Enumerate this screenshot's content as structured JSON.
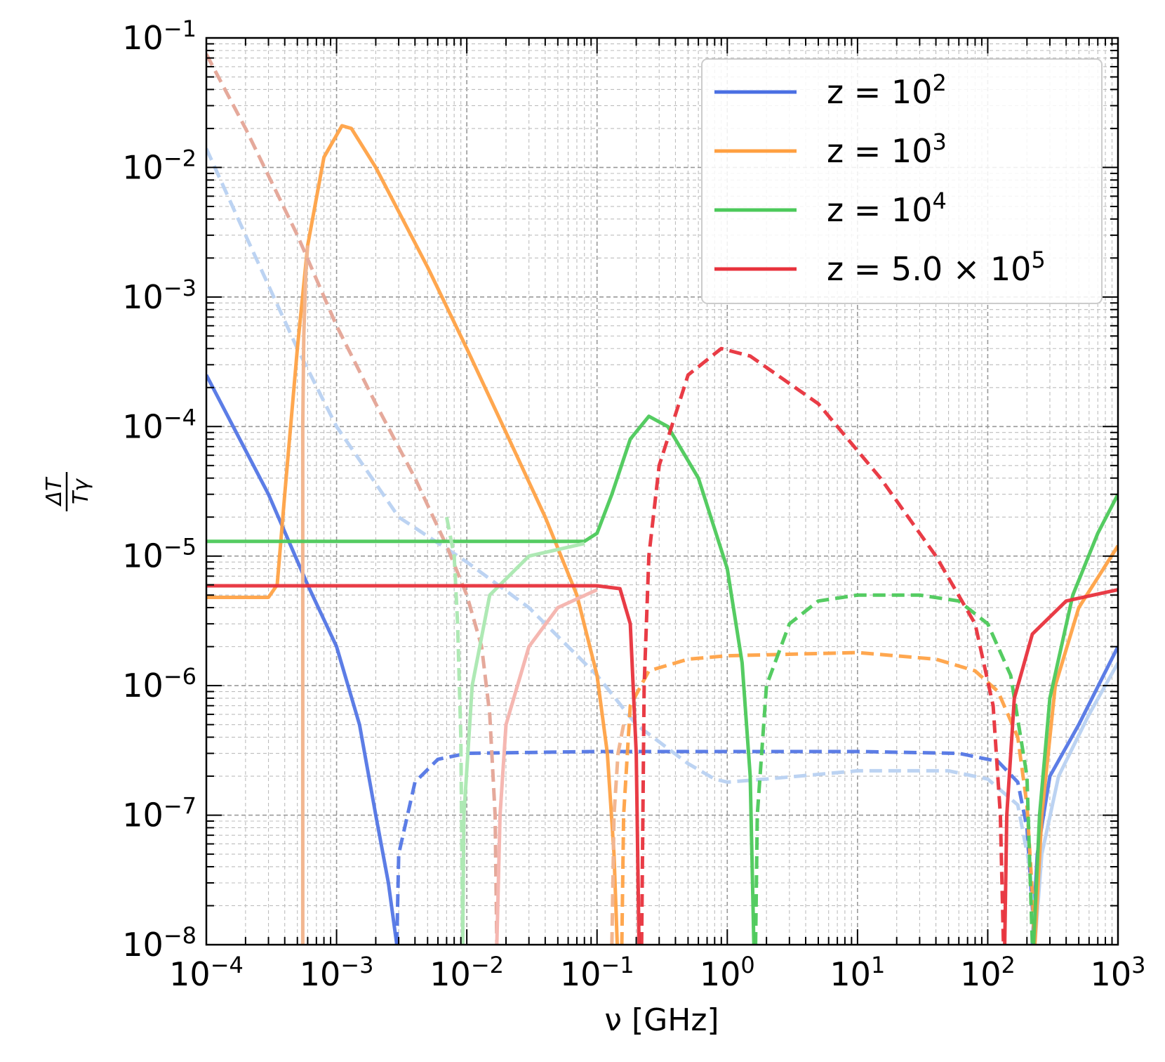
{
  "chart_data": {
    "type": "line",
    "xlabel": "ν [GHz]",
    "ylabel": {
      "numerator": "ΔT",
      "denominator": "Tγ"
    },
    "xscale": "log",
    "yscale": "log",
    "xlim": [
      0.0001,
      1000
    ],
    "ylim": [
      1e-08,
      0.1
    ],
    "grid": true,
    "legend_position": "top-right",
    "x_ticks": [
      {
        "value": 0.0001,
        "base": "10",
        "exp": "−4"
      },
      {
        "value": 0.001,
        "base": "10",
        "exp": "−3"
      },
      {
        "value": 0.01,
        "base": "10",
        "exp": "−2"
      },
      {
        "value": 0.1,
        "base": "10",
        "exp": "−1"
      },
      {
        "value": 1,
        "base": "10",
        "exp": "0"
      },
      {
        "value": 10,
        "base": "10",
        "exp": "1"
      },
      {
        "value": 100,
        "base": "10",
        "exp": "2"
      },
      {
        "value": 1000,
        "base": "10",
        "exp": "3"
      }
    ],
    "y_ticks": [
      {
        "value": 0.1,
        "base": "10",
        "exp": "−1"
      },
      {
        "value": 0.01,
        "base": "10",
        "exp": "−2"
      },
      {
        "value": 0.001,
        "base": "10",
        "exp": "−3"
      },
      {
        "value": 0.0001,
        "base": "10",
        "exp": "−4"
      },
      {
        "value": 1e-05,
        "base": "10",
        "exp": "−5"
      },
      {
        "value": 1e-06,
        "base": "10",
        "exp": "−6"
      },
      {
        "value": 1e-07,
        "base": "10",
        "exp": "−7"
      },
      {
        "value": 1e-08,
        "base": "10",
        "exp": "−8"
      }
    ],
    "legend": [
      {
        "label": "z = 10",
        "sup": "2",
        "color": "#4a6fe3"
      },
      {
        "label": "z = 10",
        "sup": "3",
        "color": "#ff9f40"
      },
      {
        "label": "z = 10",
        "sup": "4",
        "color": "#4cc95a"
      },
      {
        "label": "z = 5.0 × 10",
        "sup": "5",
        "color": "#e8323c"
      }
    ],
    "series": [
      {
        "color": "#4a6fe3",
        "style": "solid",
        "opacity": 0.9,
        "points": [
          [
            0.0001,
            0.00025
          ],
          [
            0.0003,
            3e-05
          ],
          [
            0.0006,
            6e-06
          ],
          [
            0.001,
            2e-06
          ],
          [
            0.0015,
            5e-07
          ],
          [
            0.002,
            1e-07
          ],
          [
            0.0025,
            3e-08
          ],
          [
            0.0029,
            1e-08
          ]
        ]
      },
      {
        "color": "#4a6fe3",
        "style": "solid",
        "opacity": 0.9,
        "points": [
          [
            220,
            1e-08
          ],
          [
            240,
            5e-08
          ],
          [
            300,
            2e-07
          ],
          [
            500,
            5e-07
          ],
          [
            1000,
            2e-06
          ]
        ]
      },
      {
        "color": "#4a6fe3",
        "style": "dashed",
        "opacity": 0.9,
        "points": [
          [
            0.0029,
            1e-08
          ],
          [
            0.003,
            5e-08
          ],
          [
            0.004,
            1.8e-07
          ],
          [
            0.006,
            2.7e-07
          ],
          [
            0.01,
            3e-07
          ],
          [
            0.1,
            3.1e-07
          ],
          [
            1,
            3.1e-07
          ],
          [
            10,
            3.1e-07
          ],
          [
            60,
            3e-07
          ],
          [
            120,
            2.6e-07
          ],
          [
            170,
            1.8e-07
          ],
          [
            200,
            8e-08
          ],
          [
            230,
            1e-08
          ]
        ]
      },
      {
        "color": "#bcd3f2",
        "style": "dashed",
        "opacity": 1,
        "points": [
          [
            0.0001,
            0.014
          ],
          [
            0.0002,
            0.003
          ],
          [
            0.0005,
            0.0004
          ],
          [
            0.001,
            0.0001
          ],
          [
            0.003,
            2e-05
          ],
          [
            0.01,
            9e-06
          ],
          [
            0.03,
            4e-06
          ],
          [
            0.1,
            1.2e-06
          ],
          [
            0.2,
            5e-07
          ],
          [
            0.5,
            2.5e-07
          ],
          [
            0.8,
            1.9e-07
          ],
          [
            1,
            1.8e-07
          ],
          [
            2,
            1.9e-07
          ],
          [
            10,
            2.2e-07
          ],
          [
            50,
            2.2e-07
          ],
          [
            100,
            1.9e-07
          ],
          [
            170,
            1.2e-07
          ],
          [
            210,
            4e-08
          ],
          [
            230,
            1e-08
          ]
        ]
      },
      {
        "color": "#bcd3f2",
        "style": "solid",
        "opacity": 1,
        "points": [
          [
            230,
            1e-08
          ],
          [
            260,
            5e-08
          ],
          [
            350,
            2e-07
          ],
          [
            600,
            6e-07
          ],
          [
            1000,
            1.5e-06
          ]
        ]
      },
      {
        "color": "#ff9f40",
        "style": "solid",
        "opacity": 0.92,
        "points": [
          [
            0.0001,
            4.8e-06
          ],
          [
            0.0003,
            4.8e-06
          ],
          [
            0.00035,
            6e-06
          ],
          [
            0.0004,
            3e-05
          ],
          [
            0.0005,
            0.0004
          ],
          [
            0.0006,
            0.0025
          ],
          [
            0.0008,
            0.012
          ],
          [
            0.0011,
            0.021
          ],
          [
            0.0013,
            0.02
          ],
          [
            0.002,
            0.01
          ],
          [
            0.005,
            0.0017
          ],
          [
            0.01,
            0.0004
          ],
          [
            0.02,
            9e-05
          ],
          [
            0.04,
            2e-05
          ],
          [
            0.07,
            5e-06
          ],
          [
            0.1,
            1.2e-06
          ],
          [
            0.12,
            3e-07
          ],
          [
            0.135,
            5e-08
          ],
          [
            0.143,
            1e-08
          ]
        ]
      },
      {
        "color": "#ff9f40",
        "style": "solid",
        "opacity": 0.92,
        "points": [
          [
            230,
            1e-08
          ],
          [
            260,
            1e-07
          ],
          [
            330,
            1e-06
          ],
          [
            500,
            4e-06
          ],
          [
            1000,
            1.2e-05
          ]
        ]
      },
      {
        "color": "#ff9f40",
        "style": "dashed",
        "opacity": 0.92,
        "points": [
          [
            0.155,
            1e-08
          ],
          [
            0.16,
            1e-07
          ],
          [
            0.18,
            7e-07
          ],
          [
            0.25,
            1.3e-06
          ],
          [
            0.5,
            1.6e-06
          ],
          [
            1,
            1.7e-06
          ],
          [
            10,
            1.8e-06
          ],
          [
            40,
            1.6e-06
          ],
          [
            80,
            1.3e-06
          ],
          [
            120,
            9e-07
          ],
          [
            170,
            4e-07
          ],
          [
            200,
            1.2e-07
          ],
          [
            220,
            2.5e-08
          ],
          [
            228,
            1e-08
          ]
        ]
      },
      {
        "color": "#f2b690",
        "style": "solid",
        "opacity": 1,
        "points": [
          [
            0.00055,
            1e-08
          ],
          [
            0.00055,
            0.0001
          ],
          [
            0.00056,
            0.0005
          ],
          [
            0.00058,
            0.0015
          ],
          [
            0.0006,
            0.0025
          ]
        ]
      },
      {
        "color": "#e5a99b",
        "style": "dashed",
        "opacity": 1,
        "points": [
          [
            0.0001,
            0.075
          ],
          [
            0.0002,
            0.02
          ],
          [
            0.0005,
            0.003
          ],
          [
            0.001,
            0.0006
          ],
          [
            0.002,
            0.00015
          ],
          [
            0.004,
            4e-05
          ],
          [
            0.007,
            1.2e-05
          ],
          [
            0.01,
            5e-06
          ],
          [
            0.013,
            2e-06
          ],
          [
            0.015,
            6e-07
          ],
          [
            0.0165,
            1e-07
          ],
          [
            0.017,
            1e-08
          ]
        ]
      },
      {
        "color": "#f5b7b1",
        "style": "solid",
        "opacity": 1,
        "points": [
          [
            0.017,
            1e-08
          ],
          [
            0.018,
            1e-07
          ],
          [
            0.02,
            5e-07
          ],
          [
            0.03,
            2e-06
          ],
          [
            0.05,
            4e-06
          ],
          [
            0.1,
            5.5e-06
          ]
        ]
      },
      {
        "color": "#f2b690",
        "style": "dashed",
        "opacity": 1,
        "points": [
          [
            0.13,
            1e-08
          ],
          [
            0.135,
            1e-07
          ],
          [
            0.145,
            3e-07
          ],
          [
            0.16,
            5e-07
          ]
        ]
      },
      {
        "color": "#4cc95a",
        "style": "solid",
        "opacity": 0.95,
        "points": [
          [
            0.0001,
            1.3e-05
          ],
          [
            0.08,
            1.3e-05
          ],
          [
            0.1,
            1.5e-05
          ],
          [
            0.13,
            3e-05
          ],
          [
            0.18,
            8e-05
          ],
          [
            0.25,
            0.00012
          ],
          [
            0.35,
            0.0001
          ],
          [
            0.6,
            4e-05
          ],
          [
            1,
            8e-06
          ],
          [
            1.3,
            1.5e-06
          ],
          [
            1.5,
            2e-07
          ],
          [
            1.6,
            1e-08
          ]
        ]
      },
      {
        "color": "#4cc95a",
        "style": "solid",
        "opacity": 0.95,
        "points": [
          [
            225,
            1e-08
          ],
          [
            250,
            1e-07
          ],
          [
            300,
            8e-07
          ],
          [
            450,
            5e-06
          ],
          [
            700,
            1.5e-05
          ],
          [
            1000,
            3e-05
          ]
        ]
      },
      {
        "color": "#4cc95a",
        "style": "dashed",
        "opacity": 0.95,
        "points": [
          [
            1.65,
            1e-08
          ],
          [
            1.7,
            1e-07
          ],
          [
            2,
            1e-06
          ],
          [
            3,
            3e-06
          ],
          [
            5,
            4.5e-06
          ],
          [
            10,
            5e-06
          ],
          [
            30,
            5e-06
          ],
          [
            60,
            4.5e-06
          ],
          [
            100,
            3e-06
          ],
          [
            150,
            1.2e-06
          ],
          [
            200,
            2e-07
          ],
          [
            220,
            1e-08
          ]
        ]
      },
      {
        "color": "#aee9b4",
        "style": "solid",
        "opacity": 1,
        "points": [
          [
            0.0093,
            1e-08
          ],
          [
            0.0095,
            1e-07
          ],
          [
            0.011,
            1e-06
          ],
          [
            0.015,
            5e-06
          ],
          [
            0.03,
            1e-05
          ],
          [
            0.08,
            1.25e-05
          ]
        ]
      },
      {
        "color": "#aee9b4",
        "style": "dashed",
        "opacity": 1,
        "points": [
          [
            0.007,
            2e-05
          ],
          [
            0.008,
            1e-05
          ],
          [
            0.0085,
            3e-06
          ],
          [
            0.009,
            4e-07
          ],
          [
            0.0093,
            1e-08
          ]
        ]
      },
      {
        "color": "#e8323c",
        "style": "solid",
        "opacity": 0.95,
        "points": [
          [
            0.0001,
            5.9e-06
          ],
          [
            0.1,
            5.9e-06
          ],
          [
            0.15,
            5.6e-06
          ],
          [
            0.18,
            3e-06
          ],
          [
            0.2,
            3e-07
          ],
          [
            0.21,
            1e-08
          ]
        ]
      },
      {
        "color": "#e8323c",
        "style": "solid",
        "opacity": 0.95,
        "points": [
          [
            135,
            1e-08
          ],
          [
            140,
            1e-07
          ],
          [
            160,
            8e-07
          ],
          [
            220,
            2.5e-06
          ],
          [
            400,
            4.5e-06
          ],
          [
            1000,
            5.5e-06
          ]
        ]
      },
      {
        "color": "#e8323c",
        "style": "dashed",
        "opacity": 0.95,
        "points": [
          [
            0.22,
            1e-08
          ],
          [
            0.23,
            1e-06
          ],
          [
            0.25,
            1e-05
          ],
          [
            0.3,
            5e-05
          ],
          [
            0.5,
            0.00025
          ],
          [
            0.9,
            0.0004
          ],
          [
            1.5,
            0.00035
          ],
          [
            5,
            0.00015
          ],
          [
            15,
            4e-05
          ],
          [
            40,
            1e-05
          ],
          [
            80,
            3e-06
          ],
          [
            110,
            7e-07
          ],
          [
            125,
            1e-07
          ],
          [
            132,
            1e-08
          ]
        ]
      }
    ]
  }
}
